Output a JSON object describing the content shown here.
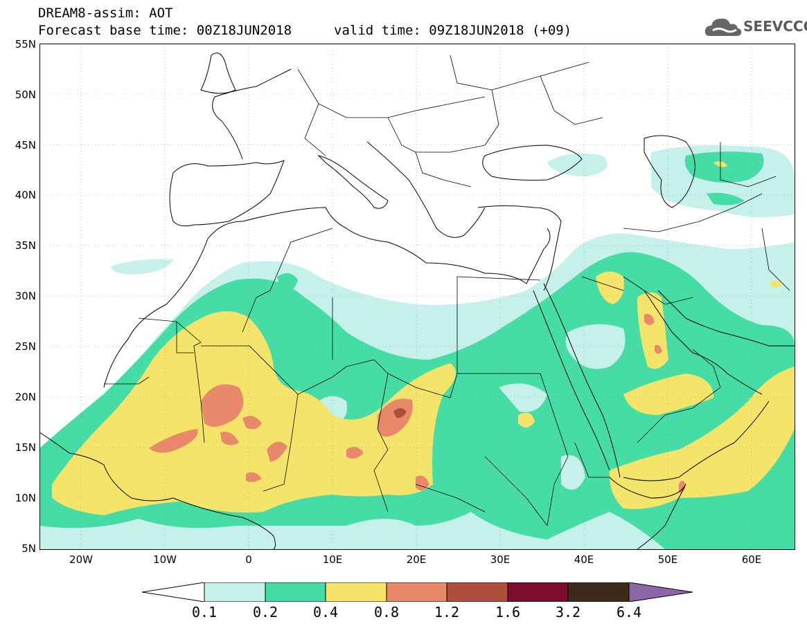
{
  "header": {
    "title": "DREAM8-assim: AOT",
    "base_time": "Forecast base time: 00Z18JUN2018",
    "valid_time": "valid time: 09Z18JUN2018 (+09)"
  },
  "logo": {
    "text": "SEEVCCC",
    "icon": "cloud-icon"
  },
  "map": {
    "variable": "AOT",
    "lon_range": [
      -25,
      65
    ],
    "lat_range": [
      5,
      55
    ],
    "grid": "dotted",
    "lat_labels": [
      "55N",
      "50N",
      "45N",
      "40N",
      "35N",
      "30N",
      "25N",
      "20N",
      "15N",
      "10N",
      "5N"
    ],
    "lon_labels": [
      "20W",
      "10W",
      "0",
      "10E",
      "20E",
      "30E",
      "40E",
      "50E",
      "60E"
    ]
  },
  "colorbar": {
    "levels": [
      "0.1",
      "0.2",
      "0.4",
      "0.8",
      "1.2",
      "1.6",
      "3.2",
      "6.4"
    ],
    "colors": [
      "#ffffff",
      "#c6f0ea",
      "#46dca5",
      "#f5e46a",
      "#e8896a",
      "#ad4e3e",
      "#7a0d2c",
      "#3c2a1b",
      "#8c66a8"
    ]
  }
}
